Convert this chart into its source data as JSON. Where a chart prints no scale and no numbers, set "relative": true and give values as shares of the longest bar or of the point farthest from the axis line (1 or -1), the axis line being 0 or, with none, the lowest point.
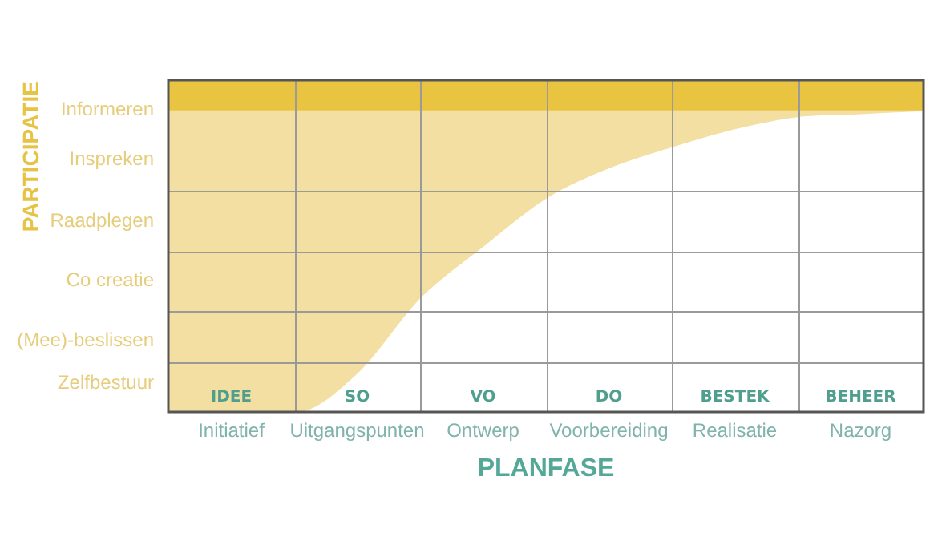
{
  "chart_data": {
    "type": "area",
    "relative": true,
    "xlabel": "PLANFASE",
    "categories": [
      null,
      "Initiatief",
      null,
      "Uitgangspunten",
      null,
      "Ontwerp",
      null,
      "Voorbereiding",
      null,
      "Realisatie",
      null,
      "Nazorg",
      null
    ],
    "series": [
      {
        "color": "#f4dfa2",
        "values": [
          0,
          0,
          0,
          0.13,
          0.38,
          0.55,
          0.71,
          0.81,
          0.88,
          0.94,
          0.98,
          0.99,
          1
        ]
      }
    ],
    "bands": [
      {
        "axis": "y",
        "from": 1,
        "to": 1.1,
        "color": "#e9c440"
      }
    ],
    "annotations": [
      "Informeren",
      "Inspreken",
      "Raadplegen",
      "Co creatie",
      "(Mee)-beslissen",
      "Zelfbestuur",
      "IDEE",
      "SO",
      "VO",
      "DO",
      "BESTEK",
      "BEHEER",
      "PARTICIPATIE"
    ],
    "grid": true,
    "marker": "none",
    "line_style": "solid"
  }
}
